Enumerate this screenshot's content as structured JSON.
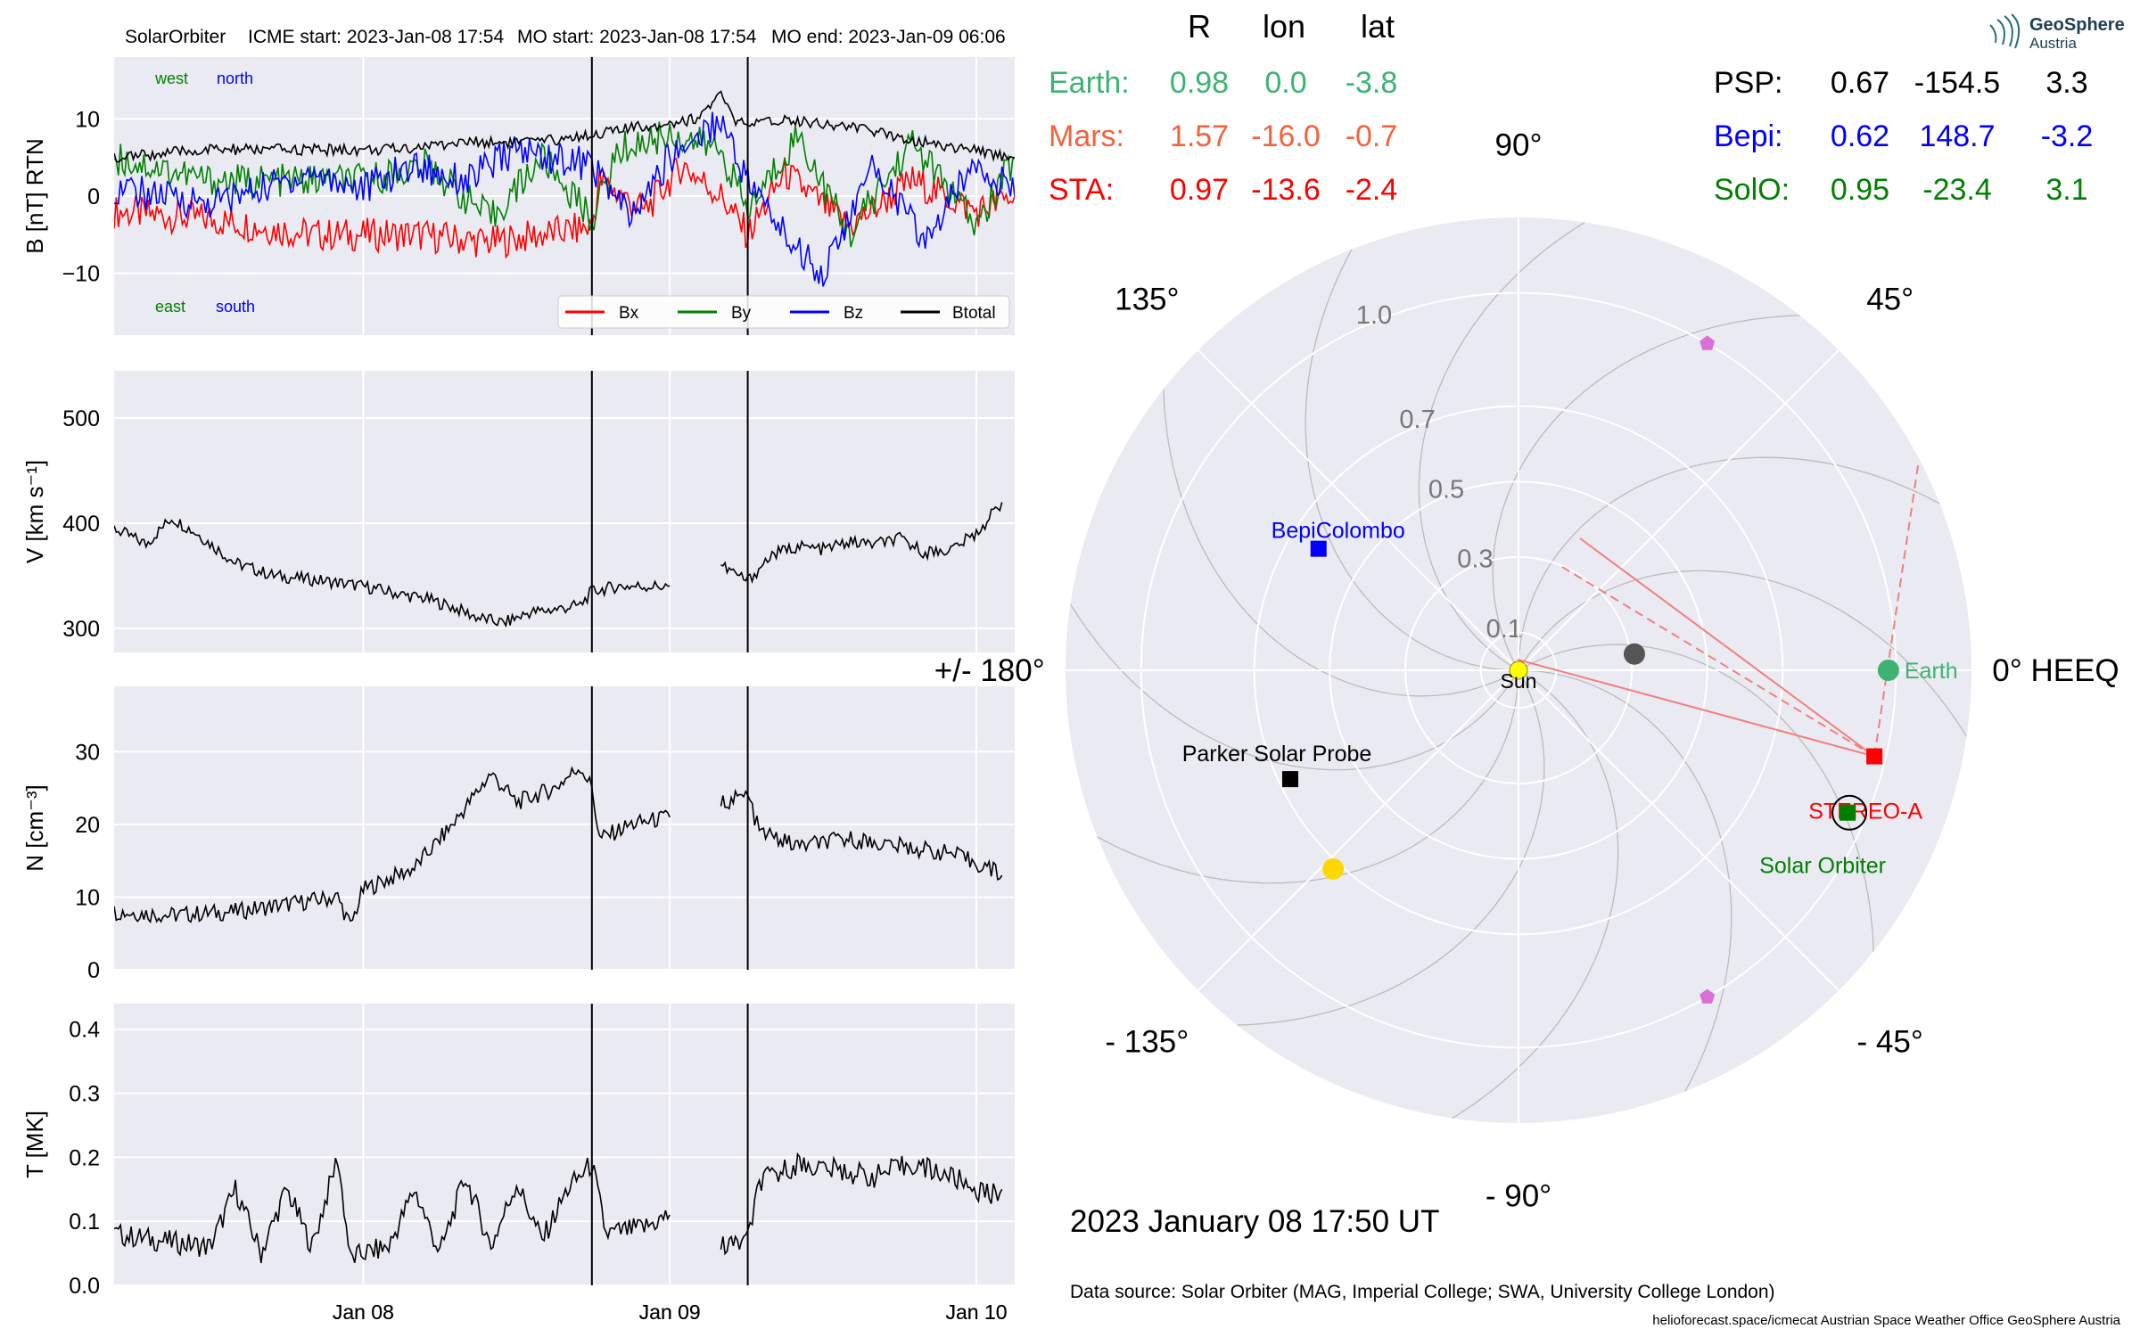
{
  "header": {
    "spacecraft": "SolarOrbiter",
    "icme_start": "ICME start: 2023-Jan-08 17:54",
    "mo_start": "MO start: 2023-Jan-08 17:54",
    "mo_end": "MO end: 2023-Jan-09 06:06"
  },
  "colors": {
    "panel_bg": "#eaeaf2",
    "bx": "#ff0000",
    "by": "#008000",
    "bz": "#0000ff",
    "btotal": "#000000",
    "earth": "#3cb371",
    "mars": "#f4623a",
    "sta": "#ff0000",
    "psp": "#000000",
    "bepi": "#0000ff",
    "solo": "#008000"
  },
  "positions_table": {
    "headers": [
      "R",
      "lon",
      "lat"
    ],
    "rows": [
      {
        "name": "Earth:",
        "R": "0.98",
        "lon": "0.0",
        "lat": "-3.8",
        "color": "#3cb371"
      },
      {
        "name": "Mars:",
        "R": "1.57",
        "lon": "-16.0",
        "lat": "-0.7",
        "color": "#f4623a"
      },
      {
        "name": "STA:",
        "R": "0.97",
        "lon": "-13.6",
        "lat": "-2.4",
        "color": "#ff0000"
      },
      {
        "name": "PSP:",
        "R": "0.67",
        "lon": "-154.5",
        "lat": "3.3",
        "color": "#000000"
      },
      {
        "name": "Bepi:",
        "R": "0.62",
        "lon": "148.7",
        "lat": "-3.2",
        "color": "#0000ff"
      },
      {
        "name": "SolO:",
        "R": "0.95",
        "lon": "-23.4",
        "lat": "3.1",
        "color": "#008000"
      }
    ]
  },
  "logo": {
    "line1": "GeoSphere",
    "line2": "Austria"
  },
  "date_text": "2023 January 08  17:50 UT",
  "data_source": "Data source: Solar Orbiter (MAG, Imperial College; SWA, University College London)",
  "footer": "helioforecast.space/icmecat   Austrian Space Weather Office   GeoSphere Austria",
  "chart_data": [
    {
      "type": "line",
      "panel": "magnetic_field",
      "ylabel": "B [nT] RTN",
      "ylim": [
        -18,
        18
      ],
      "yticks": [
        10,
        0,
        -10
      ],
      "ytick_labels": [
        "10",
        "0",
        "−10"
      ],
      "xlim_hours": [
        -19.5,
        51
      ],
      "x_unit": "hours since 2023-Jan-08 00:00",
      "xtick_hours": [
        0,
        24,
        48
      ],
      "xtick_labels": [
        "Jan 08",
        "Jan 09",
        "Jan 10"
      ],
      "event_lines_hours": [
        17.9,
        30.1
      ],
      "annotations": {
        "top_left": "west",
        "top_right": "north",
        "bottom_left": "east",
        "bottom_right": "south"
      },
      "legend": {
        "position": "lower-right",
        "entries": [
          "Bx",
          "By",
          "Bz",
          "Btotal"
        ]
      },
      "series": [
        {
          "name": "Bx",
          "x": [
            -19.5,
            -12,
            -4,
            4,
            10,
            17.9,
            18.5,
            22,
            25,
            28,
            30.1,
            33,
            38,
            43,
            48,
            51
          ],
          "y": [
            -2,
            -3,
            -5,
            -5,
            -6,
            -4,
            2,
            -2,
            4,
            0,
            -5,
            3,
            -4,
            2,
            -2,
            0
          ]
        },
        {
          "name": "By",
          "x": [
            -19.5,
            -12,
            -6,
            0,
            5,
            10,
            14,
            17.9,
            20,
            24,
            28,
            30.1,
            34,
            38,
            43,
            48,
            51
          ],
          "y": [
            5,
            2,
            2,
            2,
            4,
            -3,
            5,
            -3,
            6,
            8,
            6,
            -2,
            8,
            -5,
            7,
            -4,
            5
          ],
          "note_extra_by": []
        },
        {
          "name": "Bz",
          "x": [
            -19.5,
            -12,
            -4,
            0,
            4,
            8,
            12,
            17.9,
            21,
            24,
            28,
            30.1,
            33,
            36,
            40,
            44,
            48,
            51
          ],
          "y": [
            1,
            -1,
            3,
            1,
            4,
            2,
            6,
            4,
            -3,
            5,
            10,
            2,
            -5,
            -10,
            4,
            -6,
            5,
            0
          ]
        },
        {
          "name": "Btotal",
          "x": [
            -19.5,
            -12,
            -4,
            2,
            8,
            14,
            17.9,
            22,
            26,
            28,
            29,
            30.1,
            33,
            38,
            44,
            51
          ],
          "y": [
            5,
            6,
            6,
            6,
            7,
            7,
            8,
            9,
            10,
            13,
            10,
            9,
            10,
            9,
            7,
            5
          ]
        }
      ]
    },
    {
      "type": "line",
      "panel": "speed",
      "ylabel": "V [km s⁻¹]",
      "ylim": [
        277,
        545
      ],
      "yticks": [
        500,
        400,
        300
      ],
      "ytick_labels": [
        "500",
        "400",
        "300"
      ],
      "xlim_hours": [
        -19.5,
        51
      ],
      "event_lines_hours": [
        17.9,
        30.1
      ],
      "series": [
        {
          "name": "V",
          "x": [
            -19.5,
            -17,
            -15,
            -13,
            -10,
            -7,
            -3,
            0,
            3,
            5,
            7,
            9,
            11,
            13,
            15,
            17,
            17.9,
            20,
            24
          ],
          "y": [
            395,
            380,
            405,
            390,
            362,
            350,
            345,
            340,
            332,
            328,
            320,
            310,
            305,
            315,
            318,
            322,
            335,
            340,
            340
          ],
          "gap_after": 24
        },
        {
          "name": "V2",
          "x": [
            28,
            30.1,
            32,
            34,
            36,
            38,
            40,
            42,
            44,
            46,
            48,
            49,
            50
          ],
          "y": [
            360,
            345,
            370,
            378,
            375,
            382,
            380,
            385,
            372,
            375,
            390,
            405,
            420
          ]
        }
      ]
    },
    {
      "type": "line",
      "panel": "density",
      "ylabel": "N [cm⁻³]",
      "ylim": [
        0,
        39
      ],
      "yticks": [
        30,
        20,
        10,
        0
      ],
      "ytick_labels": [
        "30",
        "20",
        "10",
        "0"
      ],
      "xlim_hours": [
        -19.5,
        51
      ],
      "event_lines_hours": [
        17.9,
        30.1
      ],
      "series": [
        {
          "name": "N",
          "x": [
            -19.5,
            -15,
            -10,
            -6,
            -2,
            -1,
            0,
            4,
            7,
            10,
            12,
            15,
            17,
            17.9,
            18.5,
            21,
            24
          ],
          "y": [
            8,
            7.5,
            8,
            9,
            10,
            6,
            11,
            14,
            20,
            27,
            23,
            25,
            28,
            25,
            18,
            20,
            21
          ],
          "gap_after": 24
        },
        {
          "name": "N2",
          "x": [
            28,
            30.1,
            31,
            34,
            38,
            42,
            46,
            49,
            50
          ],
          "y": [
            23,
            24,
            19,
            17,
            18,
            17,
            16,
            14,
            13
          ]
        }
      ]
    },
    {
      "type": "line",
      "panel": "temperature",
      "ylabel": "T [MK]",
      "ylim": [
        0,
        0.44
      ],
      "yticks": [
        0.4,
        0.3,
        0.2,
        0.1,
        0.0
      ],
      "ytick_labels": [
        "0.4",
        "0.3",
        "0.2",
        "0.1",
        "0.0"
      ],
      "xlim_hours": [
        -19.5,
        51
      ],
      "xtick_hours": [
        0,
        24,
        48
      ],
      "xtick_labels": [
        "Jan 08",
        "Jan 09",
        "Jan 10"
      ],
      "event_lines_hours": [
        17.9,
        30.1
      ],
      "series": [
        {
          "name": "T",
          "x": [
            -19.5,
            -16,
            -12,
            -10,
            -8,
            -6,
            -4,
            -2,
            -1,
            0,
            2,
            4,
            6,
            8,
            10,
            12,
            14,
            16,
            17.9,
            19,
            22,
            24
          ],
          "y": [
            0.08,
            0.07,
            0.06,
            0.15,
            0.05,
            0.15,
            0.06,
            0.2,
            0.04,
            0.05,
            0.06,
            0.15,
            0.05,
            0.17,
            0.06,
            0.16,
            0.07,
            0.15,
            0.19,
            0.08,
            0.09,
            0.11
          ],
          "gap_after": 24
        },
        {
          "name": "T2",
          "x": [
            28,
            30.1,
            31,
            34,
            37,
            40,
            43,
            46,
            48,
            49,
            50
          ],
          "y": [
            0.06,
            0.07,
            0.16,
            0.19,
            0.18,
            0.17,
            0.19,
            0.17,
            0.15,
            0.14,
            0.15
          ]
        }
      ]
    },
    {
      "type": "polar",
      "panel": "positions",
      "angle_labels": [
        {
          "deg": 0,
          "text": "0° HEEQ"
        },
        {
          "deg": 45,
          "text": "45°"
        },
        {
          "deg": 90,
          "text": "90°"
        },
        {
          "deg": 135,
          "text": "135°"
        },
        {
          "deg": 180,
          "text": "+/- 180°"
        },
        {
          "deg": -135,
          "text": "- 135°"
        },
        {
          "deg": -90,
          "text": "- 90°"
        },
        {
          "deg": -45,
          "text": "- 45°"
        }
      ],
      "r_max": 1.2,
      "r_ticks": [
        0.1,
        0.3,
        0.5,
        0.7,
        1.0
      ],
      "r_tick_labels": [
        "0.1",
        "0.3",
        "0.5",
        "0.7",
        "1.0"
      ],
      "objects": [
        {
          "name": "Sun",
          "r": 0.0,
          "lon": 0,
          "marker": "circle",
          "color": "#ffff00",
          "label": "Sun"
        },
        {
          "name": "Earth",
          "r": 0.98,
          "lon": 0.0,
          "marker": "circle",
          "color": "#3cb371",
          "label": "Earth"
        },
        {
          "name": "STEREO-A",
          "r": 0.97,
          "lon": -13.6,
          "marker": "square",
          "color": "#ff0000",
          "label": "STEREO-A"
        },
        {
          "name": "Solar Orbiter",
          "r": 0.95,
          "lon": -23.4,
          "marker": "square",
          "color": "#008000",
          "label": "Solar Orbiter"
        },
        {
          "name": "BepiColombo",
          "r": 0.62,
          "lon": 148.7,
          "marker": "square",
          "color": "#0000ff",
          "label": "BepiColombo"
        },
        {
          "name": "Parker Solar Probe",
          "r": 0.67,
          "lon": -154.5,
          "marker": "square",
          "color": "#000000",
          "label": "Parker Solar Probe"
        },
        {
          "name": "Mercury",
          "r": 0.31,
          "lon": 8,
          "marker": "circle",
          "color": "#555555",
          "label": ""
        },
        {
          "name": "Venus",
          "r": 0.72,
          "lon": -133,
          "marker": "circle",
          "color": "#ffd700",
          "label": ""
        },
        {
          "name": "L4",
          "r": 1.0,
          "lon": 60,
          "marker": "pentagon",
          "color": "#da70d6",
          "label": ""
        },
        {
          "name": "L5",
          "r": 1.0,
          "lon": -60,
          "marker": "pentagon",
          "color": "#da70d6",
          "label": ""
        }
      ]
    }
  ]
}
